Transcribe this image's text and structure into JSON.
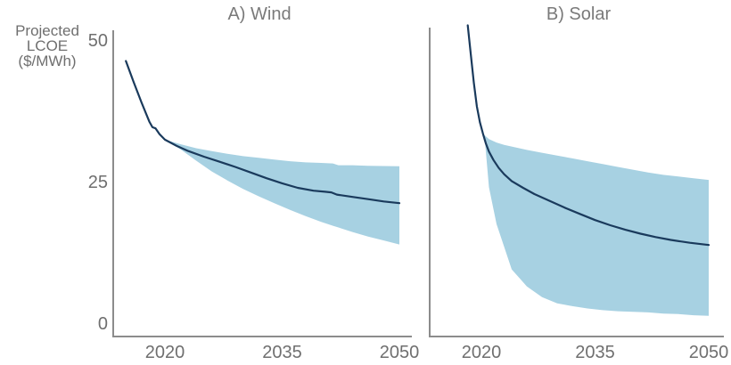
{
  "figure": {
    "kind": "two-panel line chart with uncertainty bands"
  },
  "colors": {
    "band": "#a7d1e2",
    "line": "#1a3a5c",
    "axis": "#8c8c8c",
    "tick_text": "#6f6f6f",
    "title_text": "#7a7a7a"
  },
  "y_axis": {
    "label_lines": [
      "Projected",
      "LCOE",
      "($/MWh)"
    ],
    "ticks": [
      "50",
      "25",
      "0"
    ],
    "tick_values": [
      50,
      25,
      0
    ]
  },
  "chart_data": [
    {
      "id": "wind",
      "type": "line",
      "title": "A) Wind",
      "ylabel": "Projected LCOE ($/MWh)",
      "ylim": [
        0,
        50
      ],
      "xlim": [
        2013.4,
        2050
      ],
      "x_ticks": [
        "2020",
        "2035",
        "2050"
      ],
      "x_tick_years": [
        2020,
        2035,
        2050
      ],
      "legend": "none",
      "grid": false,
      "line": {
        "x": [
          2015,
          2016,
          2017,
          2018,
          2018.4,
          2018.8,
          2019.3,
          2020,
          2021.5,
          2023,
          2025,
          2027,
          2029,
          2031,
          2033,
          2035,
          2037,
          2039,
          2040.5,
          2041.3,
          2042,
          2044,
          2046,
          2048,
          2050
        ],
        "y": [
          46.3,
          42.6,
          39.0,
          35.6,
          34.6,
          34.4,
          33.4,
          32.4,
          31.3,
          30.4,
          29.4,
          28.5,
          27.6,
          26.6,
          25.6,
          24.7,
          23.9,
          23.4,
          23.2,
          23.1,
          22.7,
          22.3,
          21.9,
          21.5,
          21.2
        ]
      },
      "band": {
        "x": [
          2020,
          2022,
          2024,
          2026,
          2028,
          2030,
          2032,
          2034,
          2036,
          2038,
          2040,
          2041.5,
          2042.2,
          2044,
          2046,
          2048,
          2050
        ],
        "upper": [
          32.4,
          31.6,
          30.9,
          30.4,
          29.9,
          29.5,
          29.2,
          28.9,
          28.6,
          28.4,
          28.3,
          28.2,
          27.9,
          27.9,
          27.8,
          27.75,
          27.7
        ],
        "lower": [
          32.4,
          30.7,
          28.7,
          26.8,
          25.2,
          23.7,
          22.4,
          21.2,
          20.0,
          18.9,
          17.9,
          17.2,
          16.9,
          16.1,
          15.3,
          14.6,
          13.9
        ]
      }
    },
    {
      "id": "solar",
      "type": "line",
      "title": "B) Solar",
      "ylabel": "Projected LCOE ($/MWh)",
      "ylim": [
        0,
        50
      ],
      "xlim": [
        2013.2,
        2050
      ],
      "x_ticks": [
        "2020",
        "2035",
        "2050"
      ],
      "x_tick_years": [
        2020,
        2035,
        2050
      ],
      "legend": "none",
      "grid": false,
      "line": {
        "x": [
          2018.2,
          2018.6,
          2019.0,
          2019.4,
          2019.8,
          2020.2,
          2020.6,
          2021,
          2021.6,
          2022.3,
          2023,
          2024,
          2025.5,
          2027,
          2029,
          2031,
          2033,
          2035,
          2037,
          2039,
          2041,
          2043,
          2045,
          2047.5,
          2050
        ],
        "y": [
          52.6,
          47.5,
          42.5,
          38.3,
          35.5,
          33.5,
          31.7,
          30.3,
          28.8,
          27.4,
          26.3,
          25.1,
          23.9,
          22.8,
          21.6,
          20.4,
          19.3,
          18.2,
          17.3,
          16.5,
          15.8,
          15.2,
          14.7,
          14.2,
          13.8
        ]
      },
      "band": {
        "x": [
          2020.4,
          2021,
          2022,
          2023,
          2024,
          2025,
          2026,
          2028,
          2030,
          2032,
          2034,
          2036,
          2038,
          2040,
          2042,
          2044,
          2046,
          2048,
          2050
        ],
        "upper": [
          33.2,
          32.5,
          31.9,
          31.5,
          31.2,
          30.9,
          30.6,
          30.1,
          29.6,
          29.1,
          28.6,
          28.1,
          27.6,
          27.1,
          26.6,
          26.2,
          25.9,
          25.6,
          25.3
        ],
        "lower": [
          33.2,
          24.0,
          17.5,
          13.5,
          9.5,
          8.0,
          6.5,
          4.6,
          3.5,
          3.0,
          2.6,
          2.3,
          2.1,
          2.0,
          1.9,
          1.7,
          1.6,
          1.4,
          1.3
        ]
      }
    }
  ]
}
